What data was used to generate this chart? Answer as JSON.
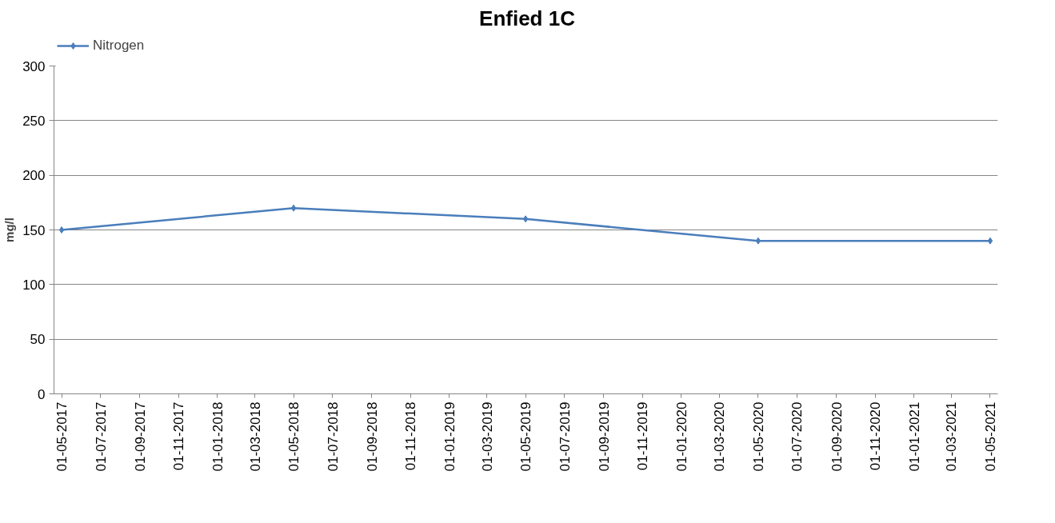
{
  "chart_data": {
    "type": "line",
    "title": "Enfied 1C",
    "ylabel": "mg/l",
    "x": [
      "2017-05-01",
      "2018-05-01",
      "2019-05-01",
      "2020-05-01",
      "2021-05-01"
    ],
    "series": [
      {
        "name": "Nitrogen",
        "color": "#4a7ebb",
        "values": [
          150,
          170,
          160,
          140,
          140
        ]
      }
    ],
    "xlim": [
      "2017-04-19",
      "2021-05-13"
    ],
    "xticks": [
      {
        "value": "2017-05-01",
        "label": "01-05-2017"
      },
      {
        "value": "2017-07-01",
        "label": "01-07-2017"
      },
      {
        "value": "2017-09-01",
        "label": "01-09-2017"
      },
      {
        "value": "2017-11-01",
        "label": "01-11-2017"
      },
      {
        "value": "2018-01-01",
        "label": "01-01-2018"
      },
      {
        "value": "2018-03-01",
        "label": "01-03-2018"
      },
      {
        "value": "2018-05-01",
        "label": "01-05-2018"
      },
      {
        "value": "2018-07-01",
        "label": "01-07-2018"
      },
      {
        "value": "2018-09-01",
        "label": "01-09-2018"
      },
      {
        "value": "2018-11-01",
        "label": "01-11-2018"
      },
      {
        "value": "2019-01-01",
        "label": "01-01-2019"
      },
      {
        "value": "2019-03-01",
        "label": "01-03-2019"
      },
      {
        "value": "2019-05-01",
        "label": "01-05-2019"
      },
      {
        "value": "2019-07-01",
        "label": "01-07-2019"
      },
      {
        "value": "2019-09-01",
        "label": "01-09-2019"
      },
      {
        "value": "2019-11-01",
        "label": "01-11-2019"
      },
      {
        "value": "2020-01-01",
        "label": "01-01-2020"
      },
      {
        "value": "2020-03-01",
        "label": "01-03-2020"
      },
      {
        "value": "2020-05-01",
        "label": "01-05-2020"
      },
      {
        "value": "2020-07-01",
        "label": "01-07-2020"
      },
      {
        "value": "2020-09-01",
        "label": "01-09-2020"
      },
      {
        "value": "2020-11-01",
        "label": "01-11-2020"
      },
      {
        "value": "2021-01-01",
        "label": "01-01-2021"
      },
      {
        "value": "2021-03-01",
        "label": "01-03-2021"
      },
      {
        "value": "2021-05-01",
        "label": "01-05-2021"
      }
    ],
    "ylim": [
      0,
      300
    ],
    "yticks": [
      0,
      50,
      100,
      150,
      200,
      250,
      300
    ],
    "grid": "y",
    "legend": "top left",
    "marker": "diamond",
    "line_style": "solid"
  }
}
